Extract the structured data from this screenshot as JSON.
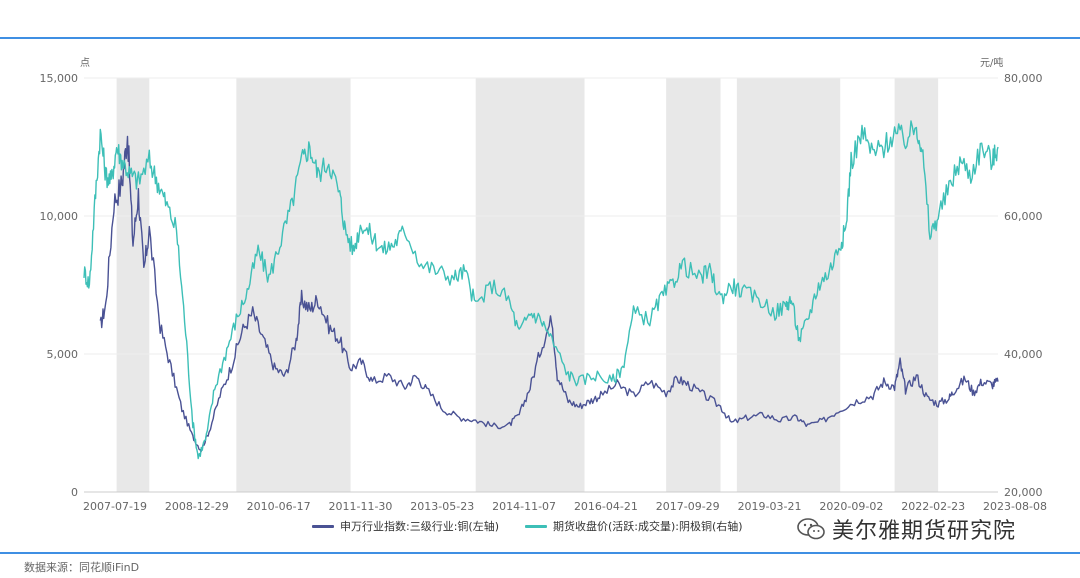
{
  "chart_data": {
    "type": "line",
    "title": "",
    "x_tick_labels": [
      "2007-07-19",
      "2008-12-29",
      "2010-06-17",
      "2011-11-30",
      "2013-05-23",
      "2014-11-07",
      "2016-04-21",
      "2017-09-29",
      "2019-03-21",
      "2020-09-02",
      "2022-02-23",
      "2023-08-08"
    ],
    "x_range": [
      2007.0,
      2023.8
    ],
    "left_axis": {
      "unit": "点",
      "ylim": [
        0,
        15000
      ],
      "ticks": [
        "0",
        "5,000",
        "10,000",
        "15,000"
      ],
      "tick_values": [
        0,
        5000,
        10000,
        15000
      ]
    },
    "right_axis": {
      "unit": "元/吨",
      "ylim": [
        20000,
        80000
      ],
      "ticks": [
        "20,000",
        "40,000",
        "60,000",
        "80,000"
      ],
      "tick_values": [
        20000,
        40000,
        60000,
        80000
      ]
    },
    "shaded_periods": [
      [
        2007.6,
        2008.2
      ],
      [
        2009.8,
        2011.9
      ],
      [
        2014.2,
        2016.2
      ],
      [
        2017.7,
        2018.7
      ],
      [
        2019.0,
        2020.9
      ],
      [
        2021.9,
        2022.7
      ]
    ],
    "series": [
      {
        "name": "申万行业指数:三级行业:铜(左轴)",
        "axis": "left",
        "color": "#4a5294",
        "points": [
          [
            2007.3,
            6000
          ],
          [
            2007.4,
            6800
          ],
          [
            2007.55,
            10500
          ],
          [
            2007.7,
            11200
          ],
          [
            2007.8,
            13000
          ],
          [
            2007.9,
            9000
          ],
          [
            2008.0,
            10800
          ],
          [
            2008.1,
            8000
          ],
          [
            2008.2,
            9500
          ],
          [
            2008.4,
            6000
          ],
          [
            2008.6,
            4500
          ],
          [
            2008.8,
            3000
          ],
          [
            2009.0,
            2000
          ],
          [
            2009.15,
            1500
          ],
          [
            2009.3,
            2200
          ],
          [
            2009.5,
            3500
          ],
          [
            2009.7,
            4500
          ],
          [
            2009.9,
            5800
          ],
          [
            2010.1,
            6500
          ],
          [
            2010.3,
            5500
          ],
          [
            2010.5,
            4500
          ],
          [
            2010.7,
            4200
          ],
          [
            2010.9,
            5500
          ],
          [
            2011.0,
            7000
          ],
          [
            2011.15,
            6600
          ],
          [
            2011.3,
            7000
          ],
          [
            2011.5,
            6000
          ],
          [
            2011.7,
            5500
          ],
          [
            2011.9,
            4500
          ],
          [
            2012.1,
            4700
          ],
          [
            2012.3,
            4000
          ],
          [
            2012.6,
            4200
          ],
          [
            2012.9,
            3800
          ],
          [
            2013.1,
            4200
          ],
          [
            2013.3,
            3700
          ],
          [
            2013.6,
            3000
          ],
          [
            2013.9,
            2700
          ],
          [
            2014.2,
            2600
          ],
          [
            2014.5,
            2400
          ],
          [
            2014.8,
            2400
          ],
          [
            2015.0,
            2800
          ],
          [
            2015.2,
            3800
          ],
          [
            2015.4,
            5200
          ],
          [
            2015.6,
            6300
          ],
          [
            2015.7,
            4200
          ],
          [
            2015.9,
            3300
          ],
          [
            2016.1,
            3100
          ],
          [
            2016.3,
            3300
          ],
          [
            2016.5,
            3500
          ],
          [
            2016.8,
            3900
          ],
          [
            2017.1,
            3500
          ],
          [
            2017.4,
            4000
          ],
          [
            2017.7,
            3600
          ],
          [
            2017.9,
            4100
          ],
          [
            2018.1,
            3900
          ],
          [
            2018.4,
            3500
          ],
          [
            2018.7,
            3100
          ],
          [
            2018.9,
            2500
          ],
          [
            2019.2,
            2700
          ],
          [
            2019.5,
            2800
          ],
          [
            2019.8,
            2600
          ],
          [
            2020.1,
            2700
          ],
          [
            2020.3,
            2400
          ],
          [
            2020.6,
            2600
          ],
          [
            2020.9,
            3000
          ],
          [
            2021.2,
            3300
          ],
          [
            2021.5,
            3500
          ],
          [
            2021.7,
            4000
          ],
          [
            2021.9,
            3800
          ],
          [
            2022.0,
            4700
          ],
          [
            2022.1,
            3700
          ],
          [
            2022.3,
            4200
          ],
          [
            2022.5,
            3400
          ],
          [
            2022.7,
            3200
          ],
          [
            2022.9,
            3400
          ],
          [
            2023.0,
            3700
          ],
          [
            2023.2,
            4100
          ],
          [
            2023.35,
            3600
          ],
          [
            2023.5,
            4000
          ],
          [
            2023.7,
            3900
          ],
          [
            2023.8,
            4000
          ]
        ]
      },
      {
        "name": "期货收盘价(活跃:成交量):阴极铜(右轴)",
        "axis": "right",
        "color": "#3dbfb7",
        "points": [
          [
            2007.0,
            52000
          ],
          [
            2007.1,
            50000
          ],
          [
            2007.2,
            62000
          ],
          [
            2007.3,
            72000
          ],
          [
            2007.4,
            66000
          ],
          [
            2007.5,
            65000
          ],
          [
            2007.6,
            70000
          ],
          [
            2007.7,
            68000
          ],
          [
            2007.85,
            66000
          ],
          [
            2008.0,
            65000
          ],
          [
            2008.2,
            68000
          ],
          [
            2008.35,
            65000
          ],
          [
            2008.5,
            62000
          ],
          [
            2008.7,
            58000
          ],
          [
            2008.85,
            45000
          ],
          [
            2009.0,
            30000
          ],
          [
            2009.1,
            25000
          ],
          [
            2009.25,
            28000
          ],
          [
            2009.4,
            35000
          ],
          [
            2009.6,
            40000
          ],
          [
            2009.8,
            45000
          ],
          [
            2010.0,
            49000
          ],
          [
            2010.2,
            55000
          ],
          [
            2010.4,
            51000
          ],
          [
            2010.6,
            56000
          ],
          [
            2010.8,
            61000
          ],
          [
            2011.0,
            68000
          ],
          [
            2011.15,
            70000
          ],
          [
            2011.3,
            66000
          ],
          [
            2011.5,
            68000
          ],
          [
            2011.7,
            63000
          ],
          [
            2011.8,
            58000
          ],
          [
            2011.95,
            55000
          ],
          [
            2012.1,
            59000
          ],
          [
            2012.3,
            57000
          ],
          [
            2012.5,
            55000
          ],
          [
            2012.7,
            56000
          ],
          [
            2012.9,
            58000
          ],
          [
            2013.2,
            53000
          ],
          [
            2013.5,
            52000
          ],
          [
            2013.8,
            51000
          ],
          [
            2014.0,
            52000
          ],
          [
            2014.2,
            47000
          ],
          [
            2014.5,
            50000
          ],
          [
            2014.8,
            48000
          ],
          [
            2015.0,
            43000
          ],
          [
            2015.2,
            46000
          ],
          [
            2015.4,
            45000
          ],
          [
            2015.6,
            42000
          ],
          [
            2015.9,
            37000
          ],
          [
            2016.1,
            36000
          ],
          [
            2016.4,
            37000
          ],
          [
            2016.7,
            36000
          ],
          [
            2016.9,
            38000
          ],
          [
            2017.1,
            46000
          ],
          [
            2017.4,
            45000
          ],
          [
            2017.6,
            48000
          ],
          [
            2017.8,
            50000
          ],
          [
            2018.0,
            53000
          ],
          [
            2018.3,
            51000
          ],
          [
            2018.5,
            52000
          ],
          [
            2018.7,
            48000
          ],
          [
            2018.9,
            50000
          ],
          [
            2019.1,
            49000
          ],
          [
            2019.4,
            48000
          ],
          [
            2019.7,
            46000
          ],
          [
            2019.9,
            47000
          ],
          [
            2020.0,
            48000
          ],
          [
            2020.15,
            42000
          ],
          [
            2020.3,
            45000
          ],
          [
            2020.5,
            50000
          ],
          [
            2020.7,
            52000
          ],
          [
            2020.9,
            56000
          ],
          [
            2021.0,
            58000
          ],
          [
            2021.1,
            68000
          ],
          [
            2021.3,
            72000
          ],
          [
            2021.5,
            69000
          ],
          [
            2021.7,
            70000
          ],
          [
            2021.9,
            72000
          ],
          [
            2022.1,
            71000
          ],
          [
            2022.3,
            73000
          ],
          [
            2022.4,
            70000
          ],
          [
            2022.55,
            57000
          ],
          [
            2022.7,
            60000
          ],
          [
            2022.9,
            64000
          ],
          [
            2023.1,
            68000
          ],
          [
            2023.3,
            66000
          ],
          [
            2023.5,
            70000
          ],
          [
            2023.7,
            68000
          ],
          [
            2023.8,
            70000
          ]
        ]
      }
    ]
  },
  "legend": {
    "item1_label": "申万行业指数:三级行业:铜(左轴)",
    "item2_label": "期货收盘价(活跃:成交量):阴极铜(右轴)"
  },
  "watermark": "美尔雅期货研究院",
  "source_text": "数据来源：同花顺iFinD"
}
